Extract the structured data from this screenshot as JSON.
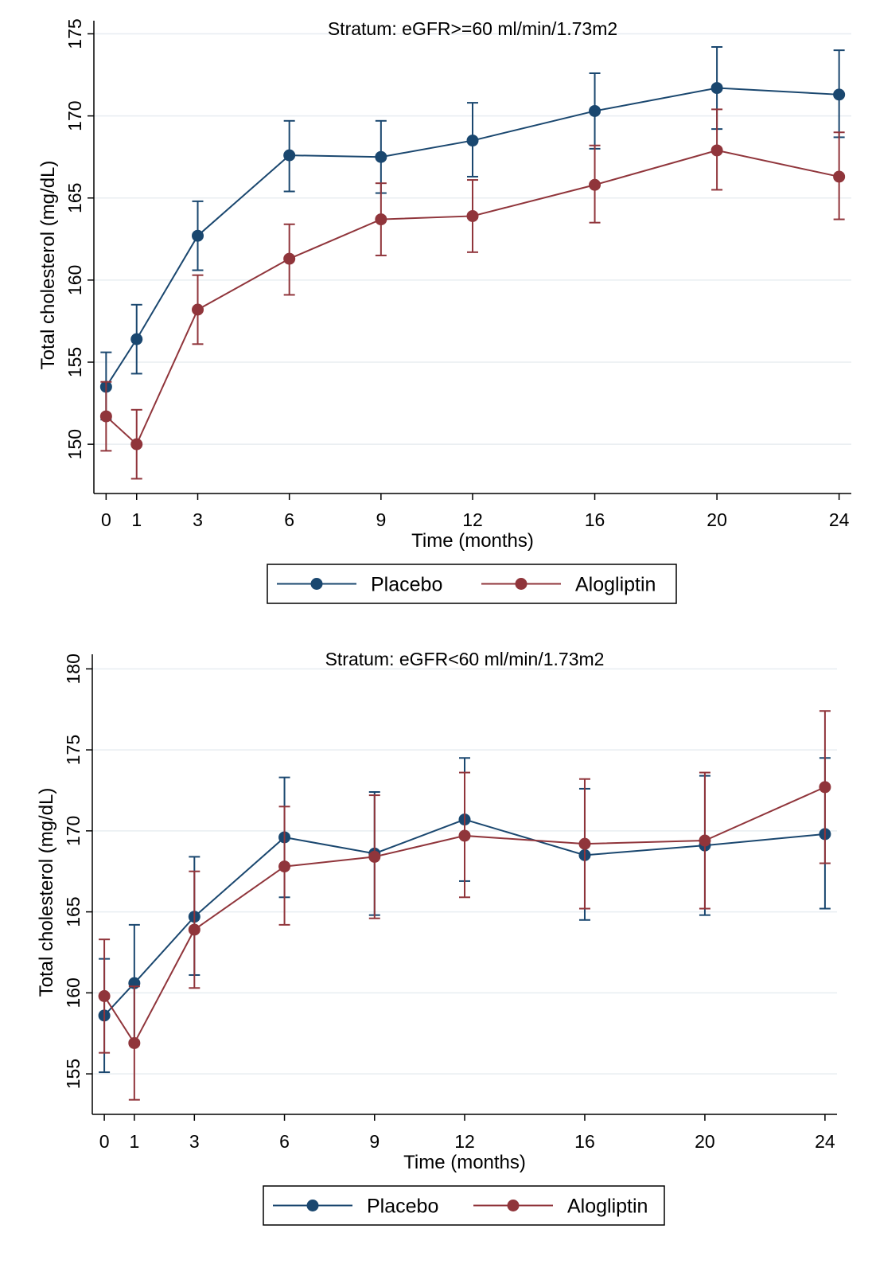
{
  "chart_data": [
    {
      "type": "line",
      "title": "Stratum: eGFR>=60 ml/min/1.73m2",
      "xlabel": "Time (months)",
      "ylabel": "Total cholesterol (mg/dL)",
      "x": [
        0,
        1,
        3,
        6,
        9,
        12,
        16,
        20,
        24
      ],
      "xlim": [
        -0.4,
        24.4
      ],
      "ylim": [
        147.0,
        175.8
      ],
      "yticks": [
        150,
        155,
        160,
        165,
        170,
        175
      ],
      "grid": true,
      "legend_position": "bottom",
      "series": [
        {
          "name": "Placebo",
          "color": "#1a476f",
          "values": [
            153.5,
            156.4,
            162.7,
            167.6,
            167.5,
            168.5,
            170.3,
            171.7,
            171.3
          ],
          "lower": [
            151.5,
            154.3,
            160.6,
            165.4,
            165.3,
            166.3,
            168.0,
            169.2,
            168.7
          ],
          "upper": [
            155.6,
            158.5,
            164.8,
            169.7,
            169.7,
            170.8,
            172.6,
            174.2,
            174.0
          ]
        },
        {
          "name": "Alogliptin",
          "color": "#90353b",
          "values": [
            151.7,
            150.0,
            158.2,
            161.3,
            163.7,
            163.9,
            165.8,
            167.9,
            166.3
          ],
          "lower": [
            149.6,
            147.9,
            156.1,
            159.1,
            161.5,
            161.7,
            163.5,
            165.5,
            163.7
          ],
          "upper": [
            153.8,
            152.1,
            160.3,
            163.4,
            165.9,
            166.1,
            168.2,
            170.4,
            169.0
          ]
        }
      ]
    },
    {
      "type": "line",
      "title": "Stratum: eGFR<60 ml/min/1.73m2",
      "xlabel": "Time (months)",
      "ylabel": "Total cholesterol (mg/dL)",
      "x": [
        0,
        1,
        3,
        6,
        9,
        12,
        16,
        20,
        24
      ],
      "xlim": [
        -0.4,
        24.4
      ],
      "ylim": [
        152.5,
        180.9
      ],
      "yticks": [
        155,
        160,
        165,
        170,
        175,
        180
      ],
      "grid": true,
      "legend_position": "bottom",
      "series": [
        {
          "name": "Placebo",
          "color": "#1a476f",
          "values": [
            158.6,
            160.6,
            164.7,
            169.6,
            168.6,
            170.7,
            168.5,
            169.1,
            169.8
          ],
          "lower": [
            155.1,
            157.0,
            161.1,
            165.9,
            164.8,
            166.9,
            164.5,
            164.8,
            165.2
          ],
          "upper": [
            162.1,
            164.2,
            168.4,
            173.3,
            172.4,
            174.5,
            172.6,
            173.4,
            174.5
          ]
        },
        {
          "name": "Alogliptin",
          "color": "#90353b",
          "values": [
            159.8,
            156.9,
            163.9,
            167.8,
            168.4,
            169.7,
            169.2,
            169.4,
            172.7
          ],
          "lower": [
            156.3,
            153.4,
            160.3,
            164.2,
            164.6,
            165.9,
            165.2,
            165.2,
            168.0
          ],
          "upper": [
            163.3,
            160.4,
            167.5,
            171.5,
            172.2,
            173.6,
            173.2,
            173.6,
            177.4
          ]
        }
      ]
    }
  ]
}
